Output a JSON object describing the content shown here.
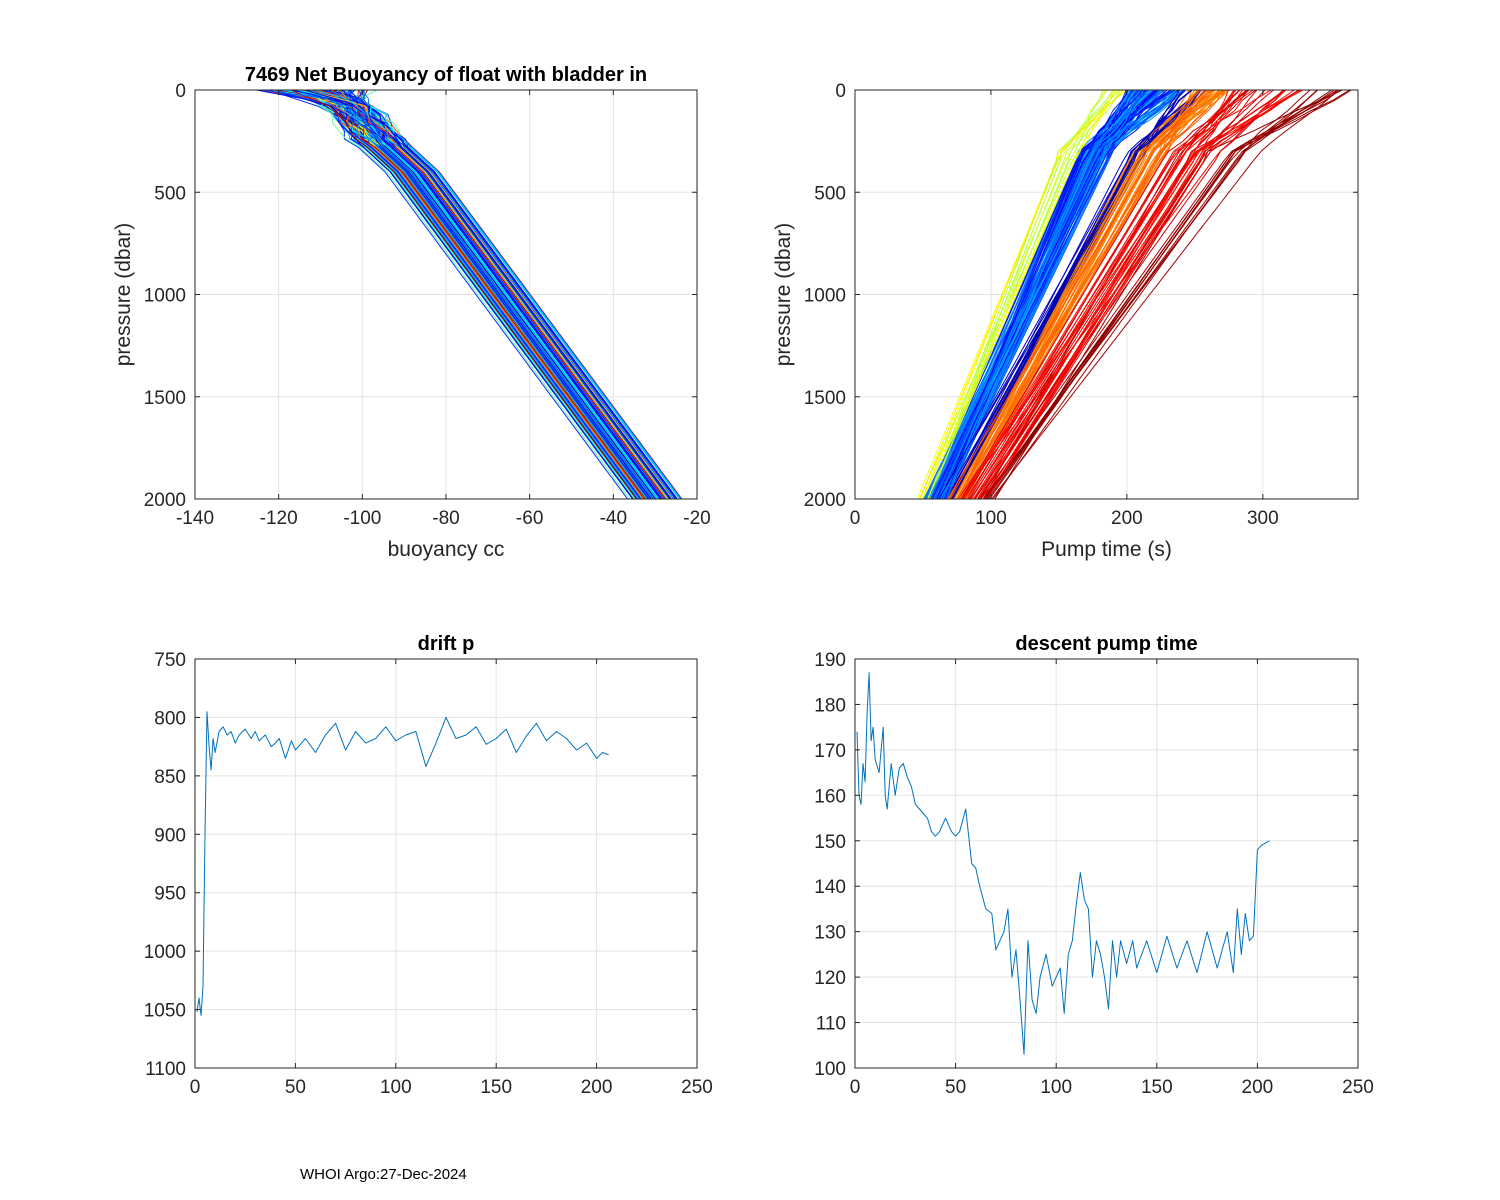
{
  "footer": "WHOI Argo:27-Dec-2024",
  "chart_data": [
    {
      "type": "line",
      "title": "7469 Net Buoyancy of float with bladder in",
      "xlabel": "buoyancy cc",
      "ylabel": "pressure (dbar)",
      "xlim": [
        -140,
        -20
      ],
      "ylim": [
        0,
        2000
      ],
      "y_reversed": true,
      "xticks": [
        -140,
        -120,
        -100,
        -80,
        -60,
        -40,
        -20
      ],
      "yticks": [
        0,
        500,
        1000,
        1500,
        2000
      ],
      "grid": true,
      "n_profiles": 206,
      "representative_profiles": [
        {
          "color": "#e08000",
          "p": [
            0,
            50,
            200,
            300,
            400,
            1000,
            1500,
            2000
          ],
          "x": [
            -118,
            -105,
            -100,
            -97,
            -92,
            -69,
            -52,
            -40
          ]
        },
        {
          "color": "#2060e0",
          "p": [
            0,
            50,
            200,
            300,
            400,
            1000,
            1500,
            2000
          ],
          "x": [
            -115,
            -103,
            -96,
            -92,
            -88,
            -65,
            -47,
            -32
          ]
        },
        {
          "color": "#00b0e0",
          "p": [
            0,
            50,
            200,
            300,
            400,
            1000,
            1500,
            2000
          ],
          "x": [
            -107,
            -99,
            -92,
            -87,
            -82,
            -60,
            -43,
            -26
          ]
        }
      ]
    },
    {
      "type": "line",
      "title": "",
      "xlabel": "Pump time (s)",
      "ylabel": "pressure (dbar)",
      "xlim": [
        0,
        370
      ],
      "ylim": [
        0,
        2000
      ],
      "y_reversed": true,
      "xticks": [
        0,
        100,
        200,
        300
      ],
      "yticks": [
        0,
        500,
        1000,
        1500,
        2000
      ],
      "grid": true,
      "n_profiles": 206,
      "representative_profiles": [
        {
          "color": "#e0e000",
          "p": [
            0,
            300,
            2000
          ],
          "x": [
            178,
            148,
            43
          ]
        },
        {
          "color": "#0050e0",
          "p": [
            0,
            300,
            2000
          ],
          "x": [
            230,
            175,
            52
          ]
        },
        {
          "color": "#ff8000",
          "p": [
            0,
            300,
            2000
          ],
          "x": [
            265,
            210,
            72
          ]
        },
        {
          "color": "#a00000",
          "p": [
            0,
            300,
            2000
          ],
          "x": [
            370,
            290,
            100
          ]
        }
      ]
    },
    {
      "type": "line",
      "title": "drift p",
      "xlabel": "",
      "ylabel": "",
      "xlim": [
        0,
        250
      ],
      "ylim": [
        750,
        1100
      ],
      "y_reversed": true,
      "xticks": [
        0,
        50,
        100,
        150,
        200,
        250
      ],
      "yticks": [
        750,
        800,
        850,
        900,
        950,
        1000,
        1050,
        1100
      ],
      "grid": true,
      "color": "#0072bd",
      "x": [
        1,
        2,
        3,
        4,
        5,
        6,
        7,
        8,
        9,
        10,
        12,
        14,
        16,
        18,
        20,
        22,
        25,
        28,
        30,
        32,
        35,
        38,
        40,
        42,
        45,
        48,
        50,
        55,
        60,
        65,
        70,
        75,
        80,
        85,
        90,
        95,
        100,
        105,
        110,
        115,
        120,
        125,
        130,
        135,
        140,
        145,
        150,
        155,
        160,
        165,
        170,
        175,
        180,
        185,
        190,
        195,
        200,
        203,
        206
      ],
      "y": [
        1052,
        1040,
        1055,
        1030,
        900,
        795,
        825,
        845,
        818,
        830,
        812,
        808,
        815,
        812,
        822,
        815,
        810,
        818,
        812,
        820,
        815,
        825,
        822,
        818,
        835,
        820,
        828,
        818,
        830,
        815,
        805,
        828,
        812,
        822,
        818,
        808,
        820,
        815,
        812,
        842,
        822,
        800,
        818,
        815,
        808,
        823,
        818,
        810,
        830,
        816,
        805,
        820,
        812,
        818,
        828,
        822,
        835,
        830,
        832
      ]
    },
    {
      "type": "line",
      "title": "descent pump time",
      "xlabel": "",
      "ylabel": "",
      "xlim": [
        0,
        250
      ],
      "ylim": [
        100,
        190
      ],
      "y_reversed": false,
      "xticks": [
        0,
        50,
        100,
        150,
        200,
        250
      ],
      "yticks": [
        100,
        110,
        120,
        130,
        140,
        150,
        160,
        170,
        180,
        190
      ],
      "grid": true,
      "color": "#0072bd",
      "x": [
        1,
        2,
        3,
        4,
        5,
        6,
        7,
        8,
        9,
        10,
        12,
        14,
        15,
        16,
        18,
        20,
        22,
        24,
        26,
        28,
        30,
        32,
        34,
        36,
        38,
        40,
        42,
        45,
        48,
        50,
        52,
        55,
        58,
        60,
        62,
        65,
        68,
        70,
        72,
        74,
        76,
        78,
        80,
        82,
        84,
        86,
        88,
        90,
        92,
        95,
        98,
        100,
        102,
        104,
        106,
        108,
        110,
        112,
        114,
        116,
        118,
        120,
        122,
        124,
        126,
        128,
        130,
        132,
        135,
        138,
        140,
        145,
        150,
        155,
        160,
        165,
        170,
        175,
        180,
        185,
        188,
        190,
        192,
        194,
        196,
        198,
        200,
        202,
        206
      ],
      "y": [
        174,
        160,
        158,
        167,
        163,
        178,
        187,
        172,
        175,
        168,
        165,
        175,
        160,
        157,
        167,
        160,
        166,
        167,
        164,
        162,
        158,
        157,
        156,
        155,
        152,
        151,
        152,
        155,
        152,
        151,
        152,
        157,
        145,
        144,
        140,
        135,
        134,
        126,
        128,
        130,
        135,
        120,
        126,
        115,
        103,
        128,
        115,
        112,
        120,
        125,
        118,
        120,
        122,
        112,
        125,
        128,
        136,
        143,
        137,
        135,
        120,
        128,
        125,
        120,
        113,
        128,
        120,
        128,
        123,
        128,
        122,
        128,
        121,
        129,
        122,
        128,
        121,
        130,
        122,
        130,
        121,
        135,
        125,
        134,
        128,
        129,
        148,
        149,
        150
      ]
    }
  ]
}
